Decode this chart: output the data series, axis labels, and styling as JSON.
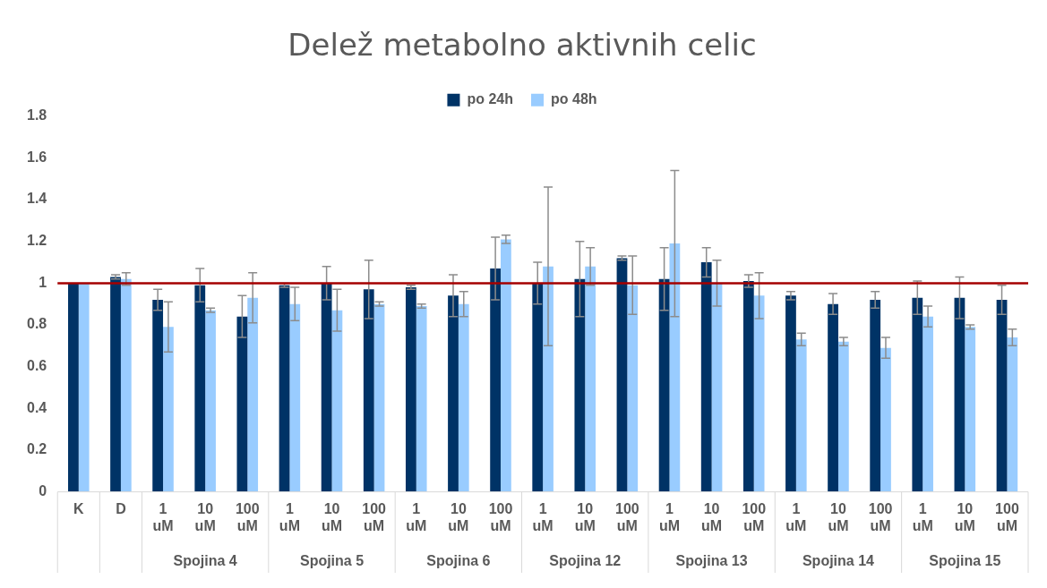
{
  "chart_data": {
    "type": "bar",
    "title": "Delež metabolno aktivnih celic",
    "categories": [
      "K",
      "D",
      "1 uM",
      "10 uM",
      "100 uM",
      "1 uM",
      "10 uM",
      "100 uM",
      "1 uM",
      "10 uM",
      "100 uM",
      "1 uM",
      "10 uM",
      "100 uM",
      "1 uM",
      "10 uM",
      "100 uM",
      "1 uM",
      "10 uM",
      "100 uM",
      "1 uM",
      "10 uM",
      "100 uM"
    ],
    "series": [
      {
        "name": "po 24h",
        "color": "#003366",
        "values": [
          1.0,
          1.03,
          0.92,
          0.99,
          0.84,
          0.99,
          1.0,
          0.97,
          0.98,
          0.94,
          1.07,
          1.0,
          1.02,
          1.12,
          1.02,
          1.1,
          1.01,
          0.94,
          0.9,
          0.92,
          0.93,
          0.93,
          0.92
        ],
        "errors": [
          null,
          0.01,
          0.05,
          0.08,
          0.1,
          0.01,
          0.08,
          0.14,
          0.01,
          0.1,
          0.15,
          0.1,
          0.18,
          0.01,
          0.15,
          0.07,
          0.03,
          0.02,
          0.05,
          0.04,
          0.08,
          0.1,
          0.07
        ]
      },
      {
        "name": "po 48h",
        "color": "#99ccff",
        "values": [
          1.0,
          1.02,
          0.79,
          0.87,
          0.93,
          0.9,
          0.87,
          0.9,
          0.89,
          0.9,
          1.21,
          1.08,
          1.08,
          0.99,
          1.19,
          1.0,
          0.94,
          0.73,
          0.72,
          0.69,
          0.84,
          0.79,
          0.74
        ],
        "errors": [
          null,
          0.03,
          0.12,
          0.01,
          0.12,
          0.08,
          0.1,
          0.01,
          0.01,
          0.06,
          0.02,
          0.38,
          0.09,
          0.14,
          0.35,
          0.11,
          0.11,
          0.03,
          0.02,
          0.05,
          0.05,
          0.01,
          0.04
        ]
      }
    ],
    "ylim": [
      0,
      1.8
    ],
    "yticks": [
      0,
      0.2,
      0.4,
      0.6,
      0.8,
      1,
      1.2,
      1.4,
      1.6,
      1.8
    ],
    "ref_lines": [
      {
        "axis": "y",
        "value": 1,
        "color": "#a50000"
      }
    ],
    "annotations": [
      "Spojina 4",
      "Spojina 5",
      "Spojina 6",
      "Spojina 12",
      "Spojina 13",
      "Spojina 14",
      "Spojina 15"
    ],
    "legend": "top",
    "grid": false
  }
}
